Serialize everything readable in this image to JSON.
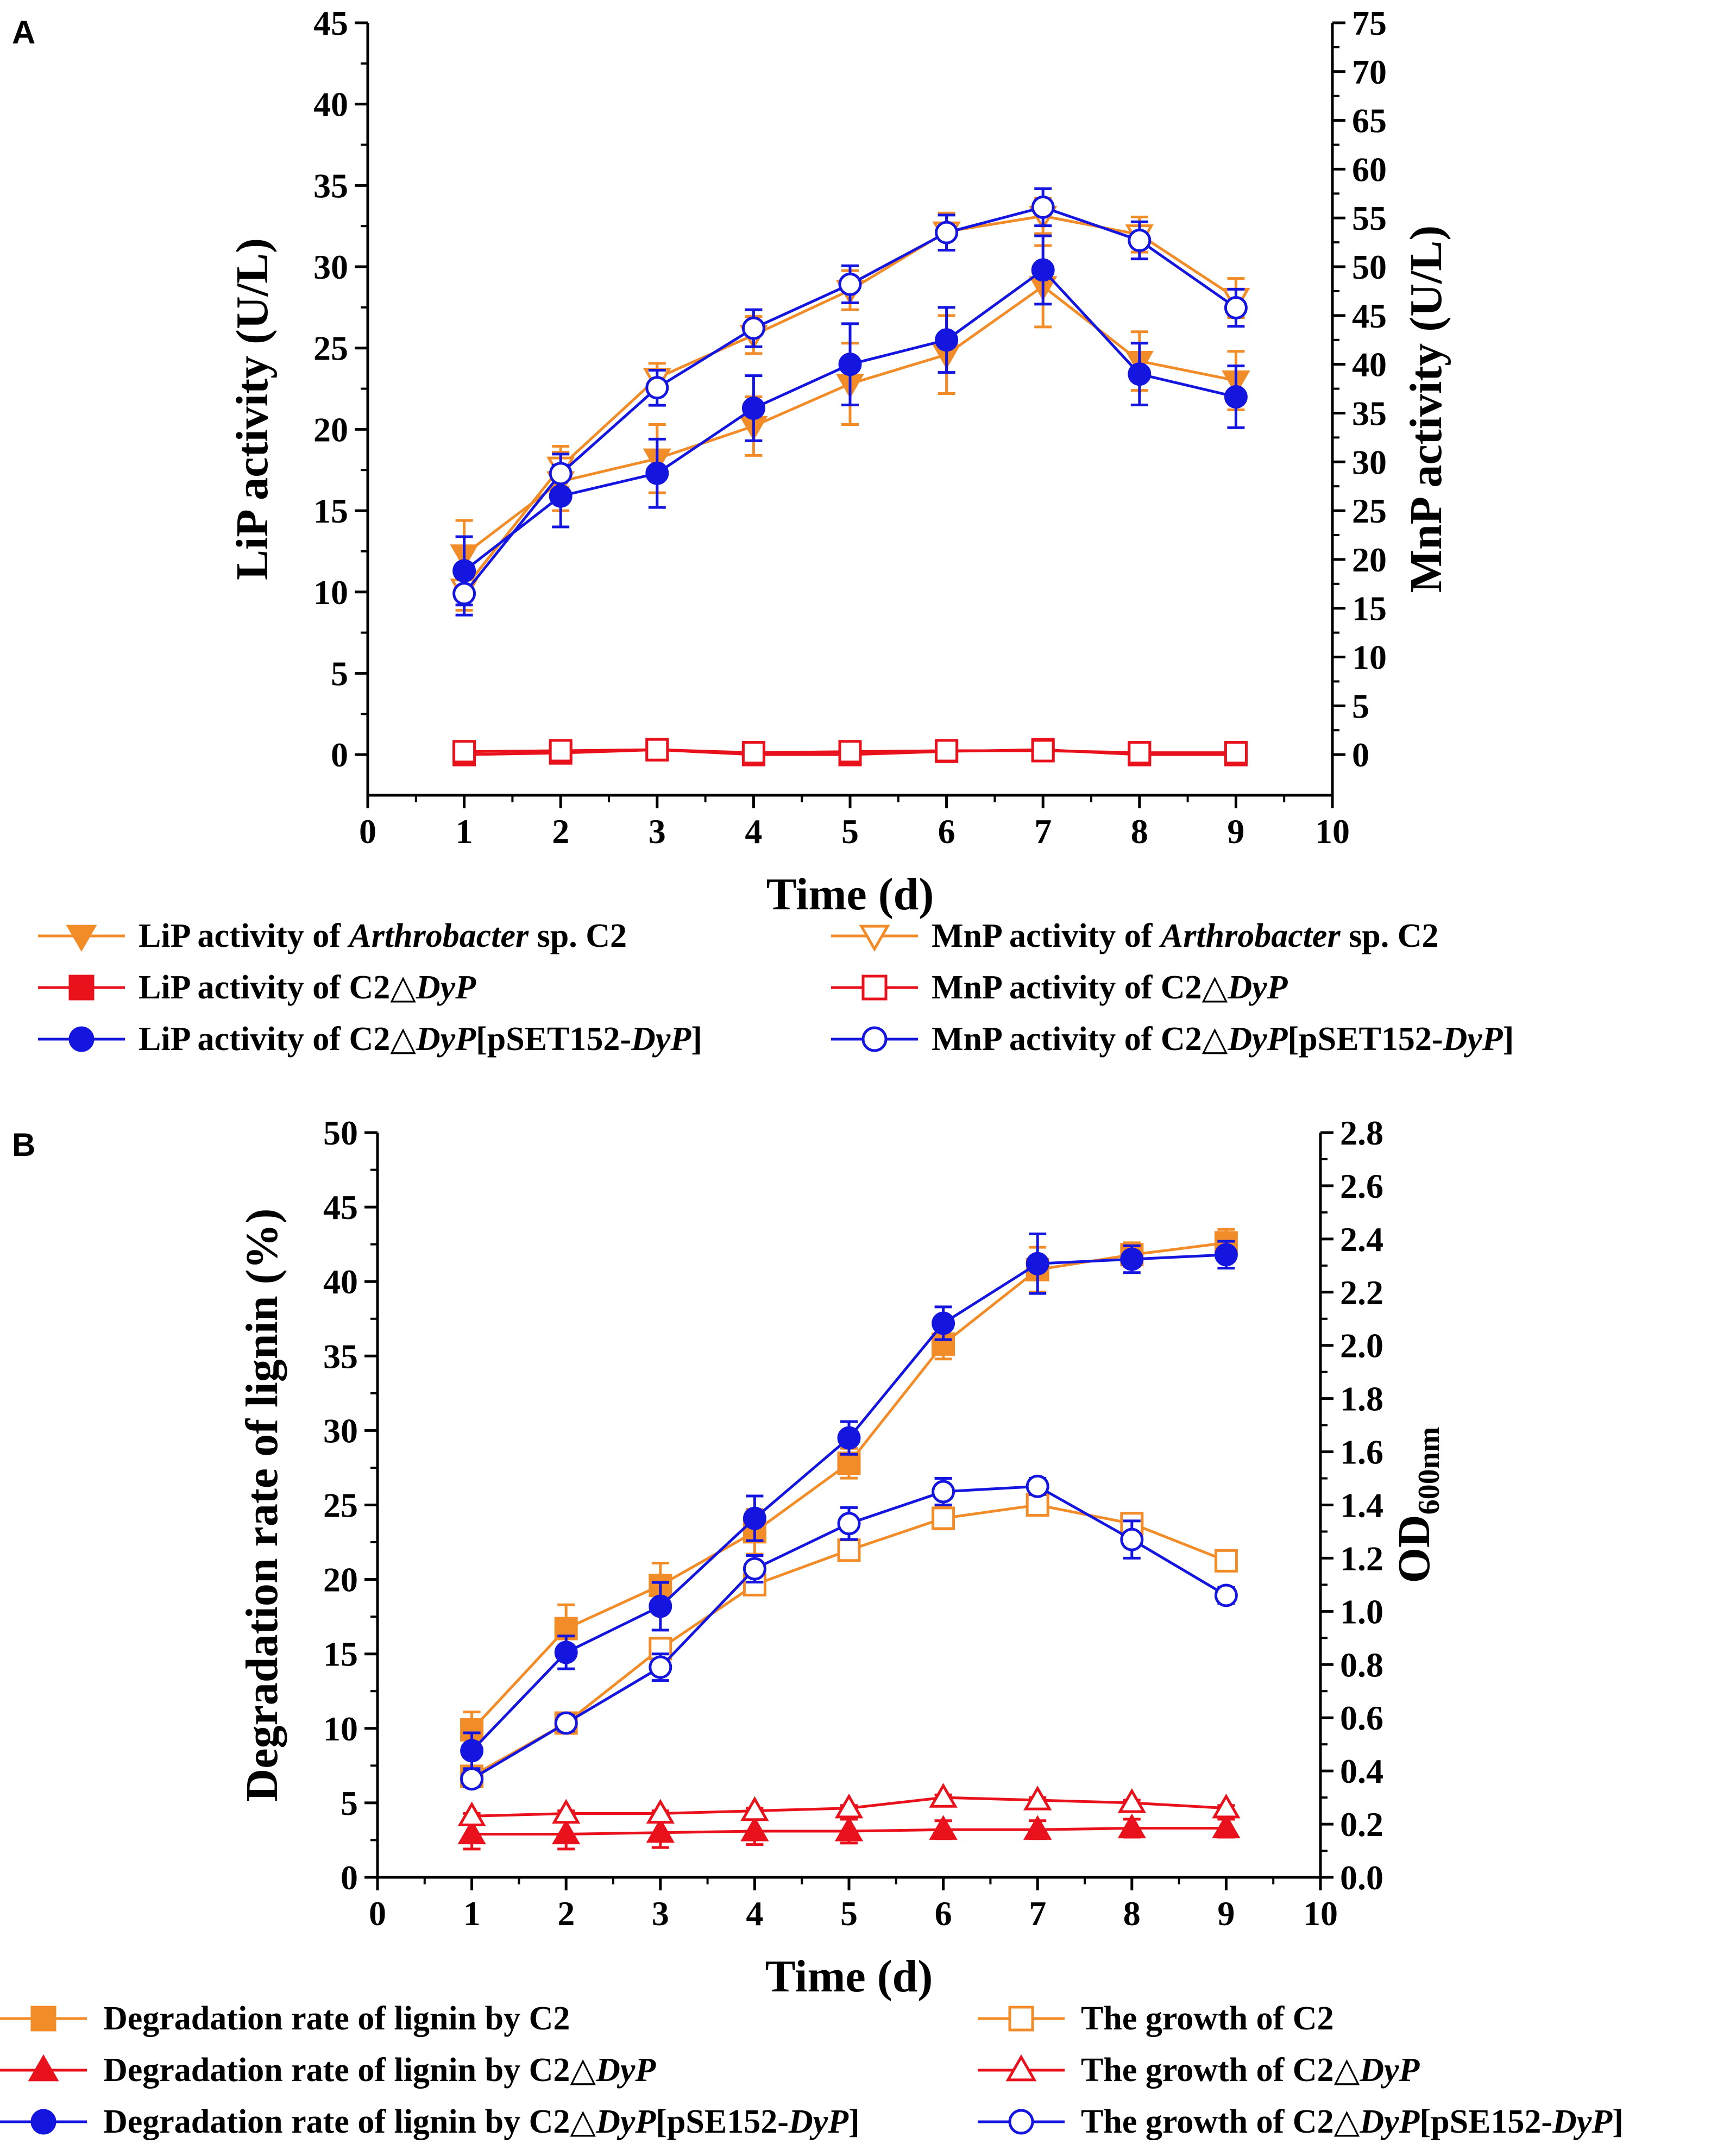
{
  "chart_data": [
    {
      "panel": "A",
      "type": "line",
      "xlabel": "Time (d)",
      "ylabel": "LiP activity (U/L)",
      "y2label": "MnP activity (U/L)",
      "xlim": [
        0,
        10
      ],
      "ylim": [
        -2.5,
        45
      ],
      "y2lim": [
        -4.1667,
        75
      ],
      "xticks": [
        0,
        1,
        2,
        3,
        4,
        5,
        6,
        7,
        8,
        9,
        10
      ],
      "yticks": [
        0,
        5,
        10,
        15,
        20,
        25,
        30,
        35,
        40,
        45
      ],
      "y2ticks": [
        0,
        5,
        10,
        15,
        20,
        25,
        30,
        35,
        40,
        45,
        50,
        55,
        60,
        65,
        70,
        75
      ],
      "x": [
        1,
        2,
        3,
        4,
        5,
        6,
        7,
        8,
        9
      ],
      "legend_position": "below",
      "series": [
        {
          "name": "LiP activity of Arthrobacter sp. C2",
          "legend": [
            "LiP activity of ",
            "Arthrobacter",
            " sp. C2"
          ],
          "axis": "left",
          "color": "#f28c28",
          "marker": "tri-down",
          "filled": true,
          "values": [
            12.3,
            16.8,
            18.2,
            20.2,
            22.8,
            24.6,
            28.8,
            24.2,
            23.0
          ],
          "errors": [
            2.1,
            1.8,
            2.1,
            1.8,
            2.5,
            2.4,
            2.5,
            1.8,
            1.8
          ]
        },
        {
          "name": "MnP activity of Arthrobacter sp. C2",
          "legend": [
            "MnP activity of ",
            "Arthrobacter",
            " sp. C2"
          ],
          "axis": "right",
          "color": "#f28c28",
          "marker": "tri-down",
          "filled": false,
          "values": [
            17.0,
            29.5,
            38.6,
            43.0,
            47.6,
            53.6,
            55.2,
            53.3,
            46.8
          ],
          "errors": [
            2.2,
            2.1,
            1.5,
            1.9,
            2.0,
            1.9,
            1.8,
            1.8,
            2.0
          ]
        },
        {
          "name": "LiP activity of C2△DyP",
          "legend": [
            "LiP activity of C2△",
            "DyP",
            ""
          ],
          "axis": "left",
          "color": "#e8111c",
          "marker": "square",
          "filled": true,
          "values": [
            0.0,
            0.1,
            0.3,
            0.0,
            0.0,
            0.2,
            0.3,
            0.0,
            0.0
          ],
          "errors": [
            0.3,
            0.3,
            0.3,
            0.3,
            0.3,
            0.3,
            0.3,
            0.3,
            0.3
          ]
        },
        {
          "name": "MnP activity of C2△DyP",
          "legend": [
            "MnP activity of C2△",
            "DyP",
            ""
          ],
          "axis": "right",
          "color": "#e8111c",
          "marker": "square",
          "filled": false,
          "values": [
            0.3,
            0.4,
            0.5,
            0.2,
            0.3,
            0.4,
            0.4,
            0.2,
            0.2
          ],
          "errors": [
            0.6,
            0.6,
            0.6,
            0.6,
            0.6,
            0.6,
            0.6,
            0.6,
            0.6
          ]
        },
        {
          "name": "LiP activity of C2△DyP[pSET152-DyP]",
          "legend": [
            "LiP activity of C2△",
            "DyP",
            "[pSET152-",
            "DyP",
            "]"
          ],
          "axis": "left",
          "color": "#1515e0",
          "marker": "circle",
          "filled": true,
          "values": [
            11.3,
            15.9,
            17.3,
            21.3,
            24.0,
            25.5,
            29.8,
            23.4,
            22.0
          ],
          "errors": [
            2.1,
            1.9,
            2.1,
            2.0,
            2.5,
            2.0,
            2.1,
            1.9,
            1.9
          ]
        },
        {
          "name": "MnP activity of C2△DyP[pSET152-DyP]",
          "legend": [
            "MnP activity of C2△",
            "DyP",
            "[pSET152-",
            "DyP",
            "]"
          ],
          "axis": "right",
          "color": "#1515e0",
          "marker": "circle",
          "filled": false,
          "values": [
            16.5,
            28.8,
            37.6,
            43.7,
            48.2,
            53.5,
            56.1,
            52.7,
            45.8
          ],
          "errors": [
            2.2,
            2.0,
            1.8,
            1.9,
            1.9,
            1.8,
            1.9,
            1.9,
            1.9
          ]
        }
      ]
    },
    {
      "panel": "B",
      "type": "line",
      "xlabel": "Time (d)",
      "ylabel": "Degradation rate of lignin (%)",
      "y2label": [
        "OD",
        "600nm"
      ],
      "xlim": [
        0,
        10
      ],
      "ylim": [
        0,
        50
      ],
      "y2lim": [
        0,
        2.8
      ],
      "xticks": [
        0,
        1,
        2,
        3,
        4,
        5,
        6,
        7,
        8,
        9,
        10
      ],
      "yticks": [
        0,
        5,
        10,
        15,
        20,
        25,
        30,
        35,
        40,
        45,
        50
      ],
      "y2ticks": [
        "0.0",
        "0.2",
        "0.4",
        "0.6",
        "0.8",
        "1.0",
        "1.2",
        "1.4",
        "1.6",
        "1.8",
        "2.0",
        "2.2",
        "2.4",
        "2.6",
        "2.8"
      ],
      "x": [
        1,
        2,
        3,
        4,
        5,
        6,
        7,
        8,
        9
      ],
      "legend_position": "below",
      "series": [
        {
          "name": "Degradation rate of lignin by C2",
          "legend": [
            "Degradation rate of lignin by C2"
          ],
          "axis": "left",
          "color": "#f28c28",
          "marker": "square",
          "filled": true,
          "values": [
            9.9,
            16.7,
            19.6,
            23.2,
            27.8,
            35.8,
            40.8,
            41.8,
            42.6
          ],
          "errors": [
            1.2,
            1.6,
            1.5,
            1.5,
            1.0,
            1.0,
            1.5,
            0.8,
            0.9
          ]
        },
        {
          "name": "The growth of C2",
          "legend": [
            "The growth of C2"
          ],
          "axis": "right",
          "color": "#f28c28",
          "marker": "square",
          "filled": false,
          "values": [
            0.38,
            0.58,
            0.86,
            1.1,
            1.23,
            1.35,
            1.4,
            1.33,
            1.19
          ],
          "errors": [
            0.03,
            0.03,
            0.03,
            0.03,
            0.03,
            0.04,
            0.03,
            0.03,
            0.02
          ]
        },
        {
          "name": "Degradation rate of lignin by C2△DyP",
          "legend": [
            "Degradation rate of lignin by C2△",
            "DyP",
            ""
          ],
          "axis": "left",
          "color": "#e8111c",
          "marker": "tri-up",
          "filled": true,
          "values": [
            2.9,
            2.9,
            3.0,
            3.1,
            3.1,
            3.2,
            3.2,
            3.3,
            3.3
          ],
          "errors": [
            1.0,
            1.0,
            1.0,
            0.9,
            0.8,
            0.6,
            0.6,
            0.6,
            0.6
          ]
        },
        {
          "name": "The growth of C2△DyP",
          "legend": [
            "The growth of C2△",
            "DyP",
            ""
          ],
          "axis": "right",
          "color": "#e8111c",
          "marker": "tri-up",
          "filled": false,
          "values": [
            0.23,
            0.24,
            0.24,
            0.25,
            0.26,
            0.3,
            0.29,
            0.28,
            0.26
          ],
          "errors": [
            0.01,
            0.01,
            0.01,
            0.01,
            0.01,
            0.01,
            0.01,
            0.01,
            0.01
          ]
        },
        {
          "name": "Degradation rate of lignin by C2△DyP[pSE152-DyP]",
          "legend": [
            "Degradation rate of lignin by C2△",
            "DyP",
            "[pSE152-",
            "DyP",
            "]"
          ],
          "axis": "left",
          "color": "#1515e0",
          "marker": "circle",
          "filled": true,
          "values": [
            8.5,
            15.1,
            18.2,
            24.1,
            29.5,
            37.2,
            41.2,
            41.5,
            41.8
          ],
          "errors": [
            1.2,
            1.1,
            1.6,
            1.5,
            1.1,
            1.1,
            2.0,
            0.9,
            0.9
          ]
        },
        {
          "name": "The growth of C2△DyP[pSE152-DyP]",
          "legend": [
            "The growth of C2△",
            "DyP",
            "[pSE152-",
            "DyP",
            "]"
          ],
          "axis": "right",
          "color": "#1515e0",
          "marker": "circle",
          "filled": false,
          "values": [
            0.37,
            0.58,
            0.79,
            1.16,
            1.33,
            1.45,
            1.47,
            1.27,
            1.06
          ],
          "errors": [
            0.03,
            0.03,
            0.05,
            0.05,
            0.06,
            0.05,
            0.03,
            0.07,
            0.03
          ]
        }
      ]
    }
  ]
}
